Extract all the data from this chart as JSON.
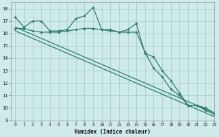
{
  "xlabel": "Humidex (Indice chaleur)",
  "bg_color": "#ceeaea",
  "grid_color": "#aacfcf",
  "line_color": "#2e7b6e",
  "xlim": [
    -0.5,
    23
  ],
  "ylim": [
    9,
    18.5
  ],
  "yticks": [
    9,
    10,
    11,
    12,
    13,
    14,
    15,
    16,
    17,
    18
  ],
  "xticks": [
    0,
    1,
    2,
    3,
    4,
    5,
    6,
    7,
    8,
    9,
    10,
    11,
    12,
    13,
    14,
    15,
    16,
    17,
    18,
    19,
    20,
    21,
    22,
    23
  ],
  "series": [
    {
      "x": [
        0,
        1,
        2,
        3,
        4,
        5,
        6,
        7,
        8,
        9,
        10,
        11,
        12,
        13,
        14,
        15,
        16,
        17,
        18,
        19,
        20,
        21,
        22,
        23
      ],
      "y": [
        17.3,
        16.5,
        17.0,
        17.0,
        16.2,
        16.2,
        16.3,
        17.2,
        17.4,
        18.1,
        16.3,
        16.3,
        16.1,
        16.3,
        16.8,
        14.4,
        14.1,
        13.0,
        12.2,
        11.2,
        10.2,
        10.2,
        9.8,
        9.5
      ]
    },
    {
      "x": [
        0,
        1,
        2,
        3,
        4,
        5,
        6,
        7,
        8,
        9,
        10,
        11,
        12,
        13,
        14,
        15,
        16,
        17,
        18,
        19,
        20,
        21,
        22,
        23
      ],
      "y": [
        16.4,
        16.4,
        16.2,
        16.1,
        16.1,
        16.1,
        16.2,
        16.3,
        16.4,
        16.4,
        16.3,
        16.2,
        16.1,
        16.1,
        16.1,
        14.5,
        13.2,
        12.5,
        11.5,
        11.0,
        10.2,
        10.2,
        10.0,
        9.6
      ]
    },
    {
      "x": [
        0,
        23
      ],
      "y": [
        16.5,
        9.6
      ]
    },
    {
      "x": [
        0,
        23
      ],
      "y": [
        16.2,
        9.3
      ]
    }
  ]
}
